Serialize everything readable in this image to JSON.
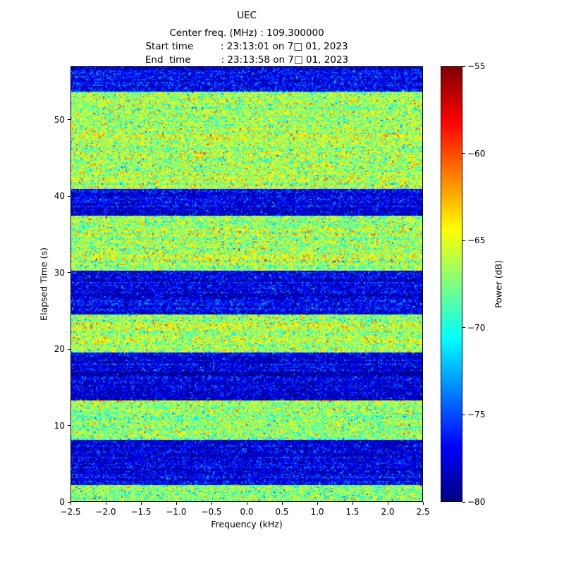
{
  "chart_data": {
    "type": "heatmap",
    "title": "UEC",
    "title_lines": [
      "UEC",
      "Center freq. (MHz) : 109.300000",
      "Start time         : 23:13:01 on 7□ 01, 2023",
      "End  time          : 23:13:58 on 7□ 01, 2023"
    ],
    "xlabel": "Frequency (kHz)",
    "ylabel": "Elapsed Time (s)",
    "xlim": [
      -2.5,
      2.5
    ],
    "ylim": [
      0,
      57
    ],
    "x_ticks": [
      -2.5,
      -2.0,
      -1.5,
      -1.0,
      -0.5,
      0.0,
      0.5,
      1.0,
      1.5,
      2.0,
      2.5
    ],
    "x_tick_labels": [
      "−2.5",
      "−2.0",
      "−1.5",
      "−1.0",
      "−0.5",
      "0.0",
      "0.5",
      "1.0",
      "1.5",
      "2.0",
      "2.5"
    ],
    "y_ticks": [
      0,
      10,
      20,
      30,
      40,
      50
    ],
    "y_tick_labels": [
      "0",
      "10",
      "20",
      "30",
      "40",
      "50"
    ],
    "grid": false,
    "colorbar": {
      "label": "Power (dB)",
      "colormap": "jet",
      "vmin": -80,
      "vmax": -55,
      "ticks": [
        -55,
        -60,
        -65,
        -70,
        -75,
        -80
      ],
      "tick_labels": [
        "−55",
        "−60",
        "−65",
        "−70",
        "−75",
        "−80"
      ]
    },
    "bands": [
      {
        "t0": 0.0,
        "t1": 2.2,
        "mean_db": -67.0,
        "std_db": 2.3
      },
      {
        "t0": 2.2,
        "t1": 8.2,
        "mean_db": -77.5,
        "std_db": 1.8
      },
      {
        "t0": 8.2,
        "t1": 13.3,
        "mean_db": -67.0,
        "std_db": 2.3
      },
      {
        "t0": 13.3,
        "t1": 19.6,
        "mean_db": -78.0,
        "std_db": 1.8
      },
      {
        "t0": 19.6,
        "t1": 24.6,
        "mean_db": -66.5,
        "std_db": 2.3
      },
      {
        "t0": 24.6,
        "t1": 30.2,
        "mean_db": -77.5,
        "std_db": 1.8
      },
      {
        "t0": 30.2,
        "t1": 37.5,
        "mean_db": -66.5,
        "std_db": 2.3
      },
      {
        "t0": 37.5,
        "t1": 41.0,
        "mean_db": -77.5,
        "std_db": 1.8
      },
      {
        "t0": 41.0,
        "t1": 53.7,
        "mean_db": -66.5,
        "std_db": 2.3
      },
      {
        "t0": 53.7,
        "t1": 57.0,
        "mean_db": -77.0,
        "std_db": 1.8
      }
    ],
    "noise": {
      "seed": 42,
      "row_jitter_db": 0.7
    },
    "freq_bins": 250,
    "time_rows": 309
  }
}
